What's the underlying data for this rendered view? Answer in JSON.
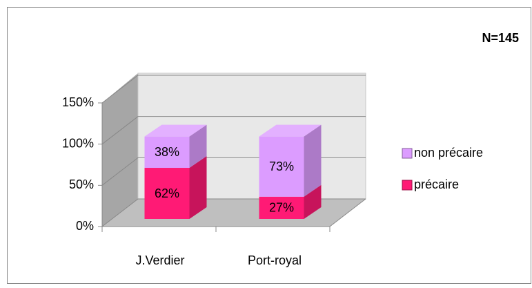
{
  "chart_data": {
    "type": "bar3d_stacked",
    "annotation": "N=145",
    "categories": [
      "J.Verdier",
      "Port-royal"
    ],
    "series": [
      {
        "name": "non précaire",
        "color": "#dc9cff",
        "values": [
          38,
          73
        ],
        "value_labels": [
          "38%",
          "73%"
        ]
      },
      {
        "name": "précaire",
        "color": "#ff1a75",
        "values": [
          62,
          27
        ],
        "value_labels": [
          "62%",
          "27%"
        ]
      }
    ],
    "ylim": [
      0,
      150
    ],
    "yticks": [
      {
        "value": 0,
        "label": "0%"
      },
      {
        "value": 50,
        "label": "50%"
      },
      {
        "value": 100,
        "label": "100%"
      },
      {
        "value": 150,
        "label": "150%"
      }
    ],
    "grid": true
  }
}
